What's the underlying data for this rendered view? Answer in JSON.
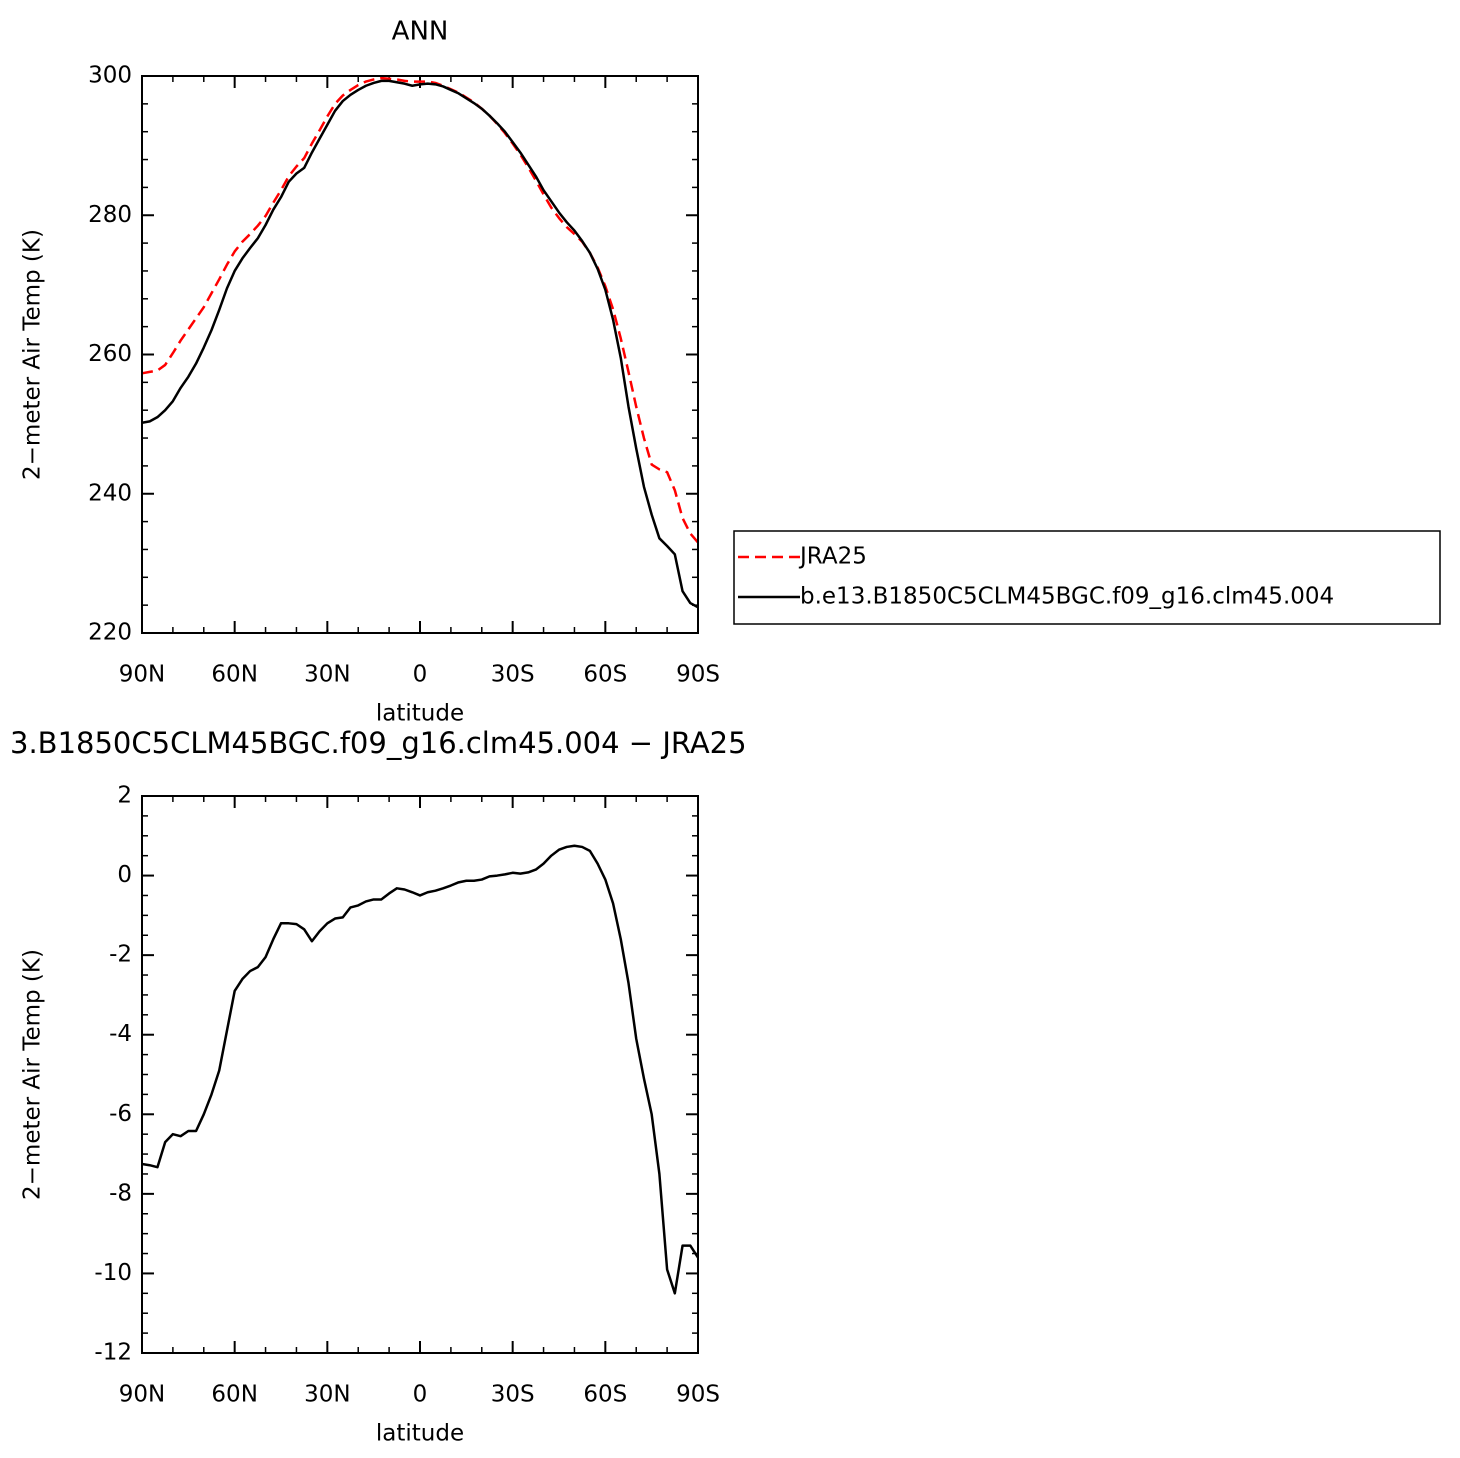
{
  "chart_data": [
    {
      "type": "line",
      "title": "ANN",
      "xlabel": "latitude",
      "ylabel": "2−meter Air Temp (K)",
      "xlim": [
        90,
        -90
      ],
      "ylim": [
        220,
        300
      ],
      "xticks": [
        {
          "value": 90,
          "label": "90N"
        },
        {
          "value": 60,
          "label": "60N"
        },
        {
          "value": 30,
          "label": "30N"
        },
        0,
        {
          "value": -30,
          "label": "30S"
        },
        {
          "value": -60,
          "label": "60S"
        },
        {
          "value": -90,
          "label": "90S"
        }
      ],
      "yticks": [
        220,
        240,
        260,
        280,
        300
      ],
      "legend": "right",
      "x": [
        90,
        87.5,
        85,
        82.5,
        80,
        77.5,
        75,
        72.5,
        70,
        67.5,
        65,
        62.5,
        60,
        57.5,
        55,
        52.5,
        50,
        47.5,
        45,
        42.5,
        40,
        37.5,
        35,
        32.5,
        30,
        27.5,
        25,
        22.5,
        20,
        17.5,
        15,
        12.5,
        10,
        7.5,
        5,
        2.5,
        0,
        -2.5,
        -5,
        -7.5,
        -10,
        -12.5,
        -15,
        -17.5,
        -20,
        -22.5,
        -25,
        -27.5,
        -30,
        -32.5,
        -35,
        -37.5,
        -40,
        -42.5,
        -45,
        -47.5,
        -50,
        -52.5,
        -55,
        -57.5,
        -60,
        -62.5,
        -65,
        -67.5,
        -70,
        -72.5,
        -75,
        -77.5,
        -80,
        -82.5,
        -85,
        -87.5,
        -90
      ],
      "series": [
        {
          "name": "JRA25",
          "color": "#ff0000",
          "dashed": true,
          "values": [
            257.3,
            257.5,
            257.7,
            258.5,
            260.2,
            262,
            263.6,
            265.2,
            266.8,
            268.8,
            270.8,
            272.9,
            274.8,
            276.2,
            277.3,
            278.5,
            279.9,
            281.8,
            283.6,
            285.6,
            287,
            288.2,
            290.3,
            292.2,
            294.2,
            296,
            297.2,
            298,
            298.7,
            299.2,
            299.5,
            299.7,
            299.6,
            299.5,
            299.3,
            299.2,
            299.2,
            299.2,
            299,
            298.6,
            298.1,
            297.6,
            296.9,
            296.2,
            295.3,
            294.3,
            293.1,
            291.8,
            290.3,
            288.7,
            286.9,
            285,
            283,
            281.1,
            279.6,
            278.3,
            277.3,
            276.2,
            274.6,
            272.5,
            269.8,
            266.5,
            262.3,
            257.5,
            252.5,
            248,
            244.2,
            243.5,
            243.1,
            240.5,
            236.5,
            234.3,
            233
          ]
        },
        {
          "name": "b.e13.B1850C5CLM45BGC.f09_g16.clm45.004",
          "color": "#000000",
          "dashed": false,
          "values": [
            250.2,
            250.4,
            251,
            252,
            253.3,
            255.2,
            256.8,
            258.7,
            261,
            263.5,
            266.4,
            269.5,
            272,
            273.8,
            275.3,
            276.7,
            278.6,
            280.8,
            282.6,
            284.8,
            286,
            286.8,
            289,
            291,
            293,
            295,
            296.4,
            297.3,
            298,
            298.6,
            299,
            299.3,
            299.3,
            299.1,
            298.9,
            298.6,
            298.8,
            298.9,
            298.8,
            298.5,
            298,
            297.5,
            296.8,
            296.1,
            295.3,
            294.3,
            293.2,
            292,
            290.5,
            289,
            287.3,
            285.6,
            283.6,
            282,
            280.4,
            279,
            277.8,
            276.3,
            274.6,
            272.3,
            269.3,
            265,
            259.5,
            252.5,
            246.5,
            241,
            237,
            233.6,
            232.5,
            231.3,
            226,
            224.3,
            223.7
          ]
        }
      ]
    },
    {
      "type": "line",
      "title": "3.B1850C5CLM45BGC.f09_g16.clm45.004 − JRA25",
      "xlabel": "latitude",
      "ylabel": "2−meter Air Temp (K)",
      "xlim": [
        90,
        -90
      ],
      "ylim": [
        -12,
        2
      ],
      "xticks": [
        {
          "value": 90,
          "label": "90N"
        },
        {
          "value": 60,
          "label": "60N"
        },
        {
          "value": 30,
          "label": "30N"
        },
        0,
        {
          "value": -30,
          "label": "30S"
        },
        {
          "value": -60,
          "label": "60S"
        },
        {
          "value": -90,
          "label": "90S"
        }
      ],
      "yticks": [
        -12,
        -10,
        -8,
        -6,
        -4,
        -2,
        0,
        2
      ],
      "x": [
        90,
        87.5,
        85,
        82.5,
        80,
        77.5,
        75,
        72.5,
        70,
        67.5,
        65,
        62.5,
        60,
        57.5,
        55,
        52.5,
        50,
        47.5,
        45,
        42.5,
        40,
        37.5,
        35,
        32.5,
        30,
        27.5,
        25,
        22.5,
        20,
        17.5,
        15,
        12.5,
        10,
        7.5,
        5,
        2.5,
        0,
        -2.5,
        -5,
        -7.5,
        -10,
        -12.5,
        -15,
        -17.5,
        -20,
        -22.5,
        -25,
        -27.5,
        -30,
        -32.5,
        -35,
        -37.5,
        -40,
        -42.5,
        -45,
        -47.5,
        -50,
        -52.5,
        -55,
        -57.5,
        -60,
        -62.5,
        -65,
        -67.5,
        -70,
        -72.5,
        -75,
        -77.5,
        -80,
        -82.5,
        -85,
        -87.5,
        -90
      ],
      "series": [
        {
          "color": "#000000",
          "dashed": false,
          "values": [
            -7.25,
            -7.28,
            -7.33,
            -6.7,
            -6.5,
            -6.55,
            -6.42,
            -6.42,
            -6.0,
            -5.5,
            -4.9,
            -3.9,
            -2.9,
            -2.6,
            -2.4,
            -2.3,
            -2.05,
            -1.6,
            -1.2,
            -1.2,
            -1.22,
            -1.35,
            -1.65,
            -1.4,
            -1.2,
            -1.08,
            -1.05,
            -0.8,
            -0.75,
            -0.65,
            -0.6,
            -0.6,
            -0.45,
            -0.32,
            -0.35,
            -0.42,
            -0.5,
            -0.42,
            -0.38,
            -0.32,
            -0.25,
            -0.17,
            -0.13,
            -0.13,
            -0.1,
            -0.02,
            0.0,
            0.03,
            0.07,
            0.05,
            0.08,
            0.15,
            0.3,
            0.5,
            0.65,
            0.72,
            0.75,
            0.72,
            0.62,
            0.3,
            -0.1,
            -0.7,
            -1.6,
            -2.7,
            -4.1,
            -5.1,
            -6.0,
            -7.5,
            -9.9,
            -10.5,
            -9.3,
            -9.3,
            -9.6
          ]
        }
      ]
    }
  ]
}
